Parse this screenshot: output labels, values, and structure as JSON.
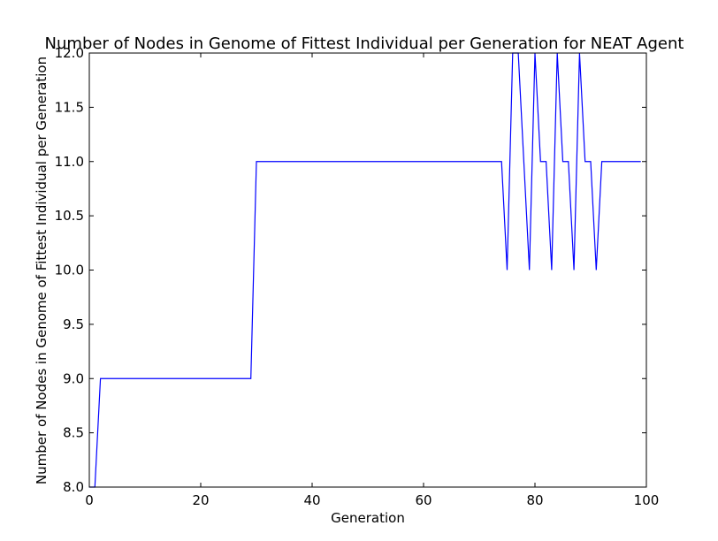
{
  "chart_data": {
    "type": "line",
    "title": "Number of Nodes in Genome of Fittest Individual per Generation for NEAT Agent",
    "xlabel": "Generation",
    "ylabel": "Number of Nodes in Genome of Fittest Individual per Generation",
    "xlim": [
      0,
      100
    ],
    "ylim": [
      8.0,
      12.0
    ],
    "xticks": [
      0,
      20,
      40,
      60,
      80,
      100
    ],
    "xtick_labels": [
      "0",
      "20",
      "40",
      "60",
      "80",
      "100"
    ],
    "yticks": [
      8.0,
      8.5,
      9.0,
      9.5,
      10.0,
      10.5,
      11.0,
      11.5,
      12.0
    ],
    "ytick_labels": [
      "8.0",
      "8.5",
      "9.0",
      "9.5",
      "10.0",
      "10.5",
      "11.0",
      "11.5",
      "12.0"
    ],
    "grid": false,
    "series": [
      {
        "color": "#0000ff",
        "x": [
          0,
          1,
          2,
          3,
          4,
          5,
          6,
          7,
          8,
          9,
          10,
          11,
          12,
          13,
          14,
          15,
          16,
          17,
          18,
          19,
          20,
          21,
          22,
          23,
          24,
          25,
          26,
          27,
          28,
          29,
          30,
          31,
          32,
          33,
          34,
          35,
          36,
          37,
          38,
          39,
          40,
          41,
          42,
          43,
          44,
          45,
          46,
          47,
          48,
          49,
          50,
          51,
          52,
          53,
          54,
          55,
          56,
          57,
          58,
          59,
          60,
          61,
          62,
          63,
          64,
          65,
          66,
          67,
          68,
          69,
          70,
          71,
          72,
          73,
          74,
          75,
          76,
          77,
          78,
          79,
          80,
          81,
          82,
          83,
          84,
          85,
          86,
          87,
          88,
          89,
          90,
          91,
          92,
          93,
          94,
          95,
          96,
          97,
          98,
          99
        ],
        "values": [
          8,
          8,
          9,
          9,
          9,
          9,
          9,
          9,
          9,
          9,
          9,
          9,
          9,
          9,
          9,
          9,
          9,
          9,
          9,
          9,
          9,
          9,
          9,
          9,
          9,
          9,
          9,
          9,
          9,
          9,
          11,
          11,
          11,
          11,
          11,
          11,
          11,
          11,
          11,
          11,
          11,
          11,
          11,
          11,
          11,
          11,
          11,
          11,
          11,
          11,
          11,
          11,
          11,
          11,
          11,
          11,
          11,
          11,
          11,
          11,
          11,
          11,
          11,
          11,
          11,
          11,
          11,
          11,
          11,
          11,
          11,
          11,
          11,
          11,
          11,
          10,
          12,
          12,
          11,
          10,
          12,
          11,
          11,
          10,
          12,
          11,
          11,
          10,
          12,
          11,
          11,
          10,
          11,
          11,
          11,
          11,
          11,
          11,
          11,
          11
        ]
      }
    ]
  }
}
